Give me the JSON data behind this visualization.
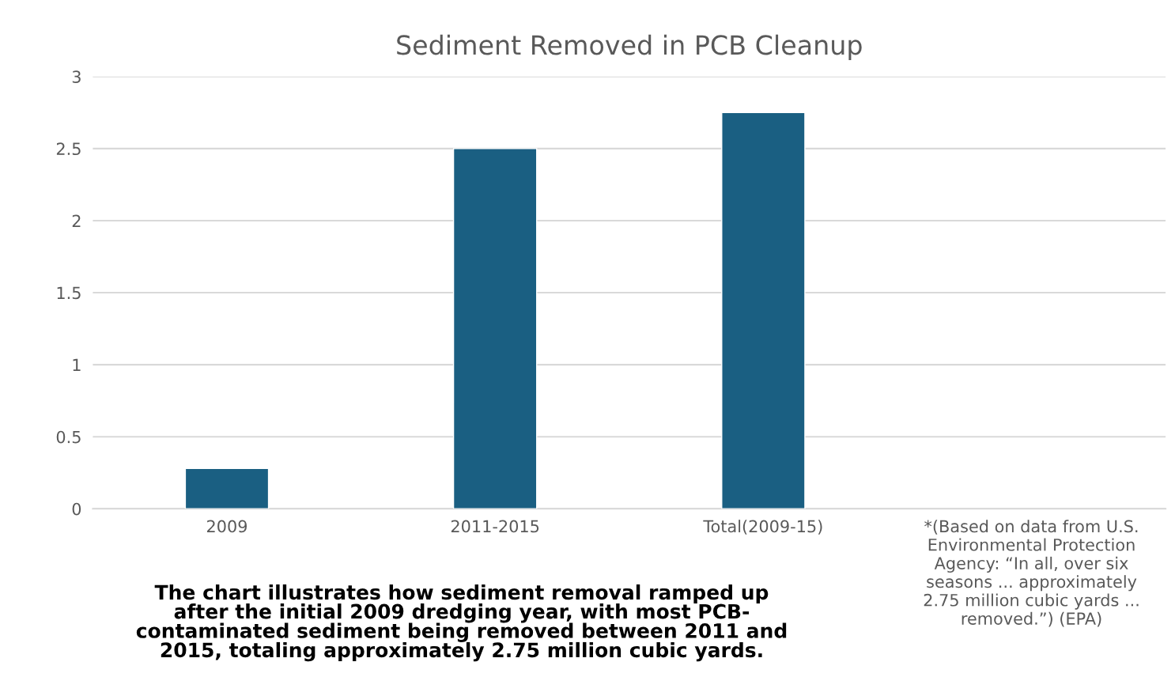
{
  "chart_data": {
    "type": "bar",
    "title": "Sediment Removed in PCB Cleanup",
    "categories": [
      "2009",
      "2011-2015",
      "Total(2009-15)",
      "*(Based on data from U.S.\nEnvironmental Protection\nAgency: “In all, over six\nseasons ... approximately\n2.75 million cubic yards ...\nremoved.”) (EPA)"
    ],
    "values": [
      0.28,
      2.5,
      2.75,
      null
    ],
    "color": "#1a5f82",
    "ylim": [
      0,
      3
    ],
    "yticks": [
      0,
      0.5,
      1,
      1.5,
      2,
      2.5,
      3
    ],
    "grid": "y",
    "annotations": [
      "The chart illustrates how sediment removal ramped up\nafter the initial 2009 dredging year, with most PCB-\ncontaminated sediment being removed between 2011 and\n2015, totaling approximately 2.75 million cubic yards."
    ]
  }
}
